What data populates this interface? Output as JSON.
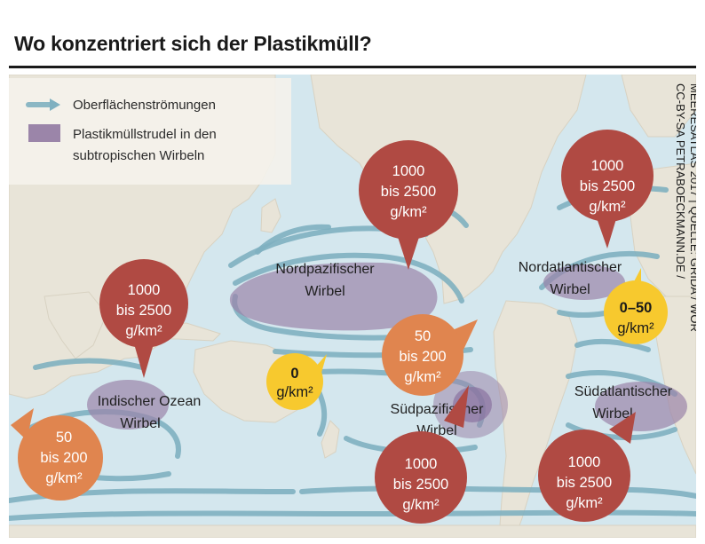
{
  "title": "Wo konzentriert sich der Plastikmüll?",
  "legend": {
    "currents": "Oberflächenströmungen",
    "gyres_line1": "Plastikmüllstrudel in den",
    "gyres_line2": "subtropischen Wirbeln"
  },
  "colors": {
    "ocean": "#d4e7ee",
    "land": "#e8e4d8",
    "current": "#7fb0c0",
    "gyre": "#9b85a9",
    "bubble_high": "#b04a43",
    "bubble_mid": "#e0854f",
    "bubble_low": "#f7c92e"
  },
  "gyres": [
    {
      "name1": "Nordpazifischer",
      "name2": "Wirbel"
    },
    {
      "name1": "Nordatlantischer",
      "name2": "Wirbel"
    },
    {
      "name1": "Indischer Ozean",
      "name2": "Wirbel"
    },
    {
      "name1": "Südpazifischer",
      "name2": "Wirbel"
    },
    {
      "name1": "Südatlantischer",
      "name2": "Wirbel"
    }
  ],
  "bubbles": [
    {
      "l1": "1000",
      "l2": "bis 2500",
      "l3": "g/km²"
    },
    {
      "l1": "1000",
      "l2": "bis 2500",
      "l3": "g/km²"
    },
    {
      "l1": "1000",
      "l2": "bis 2500",
      "l3": "g/km²"
    },
    {
      "l1": "0–50",
      "l2": "g/km²"
    },
    {
      "l1": "50",
      "l2": "bis 200",
      "l3": "g/km²"
    },
    {
      "l1": "0",
      "l2": "g/km²"
    },
    {
      "l1": "50",
      "l2": "bis 200",
      "l3": "g/km²"
    },
    {
      "l1": "1000",
      "l2": "bis 2500",
      "l3": "g/km²"
    },
    {
      "l1": "1000",
      "l2": "bis 2500",
      "l3": "g/km²"
    }
  ],
  "credit": {
    "line1": "CC-BY-SA PETRABOECKMANN.DE /",
    "line2": "MEERESATLAS 2017 | QUELLE: GRIDA / WOR"
  }
}
